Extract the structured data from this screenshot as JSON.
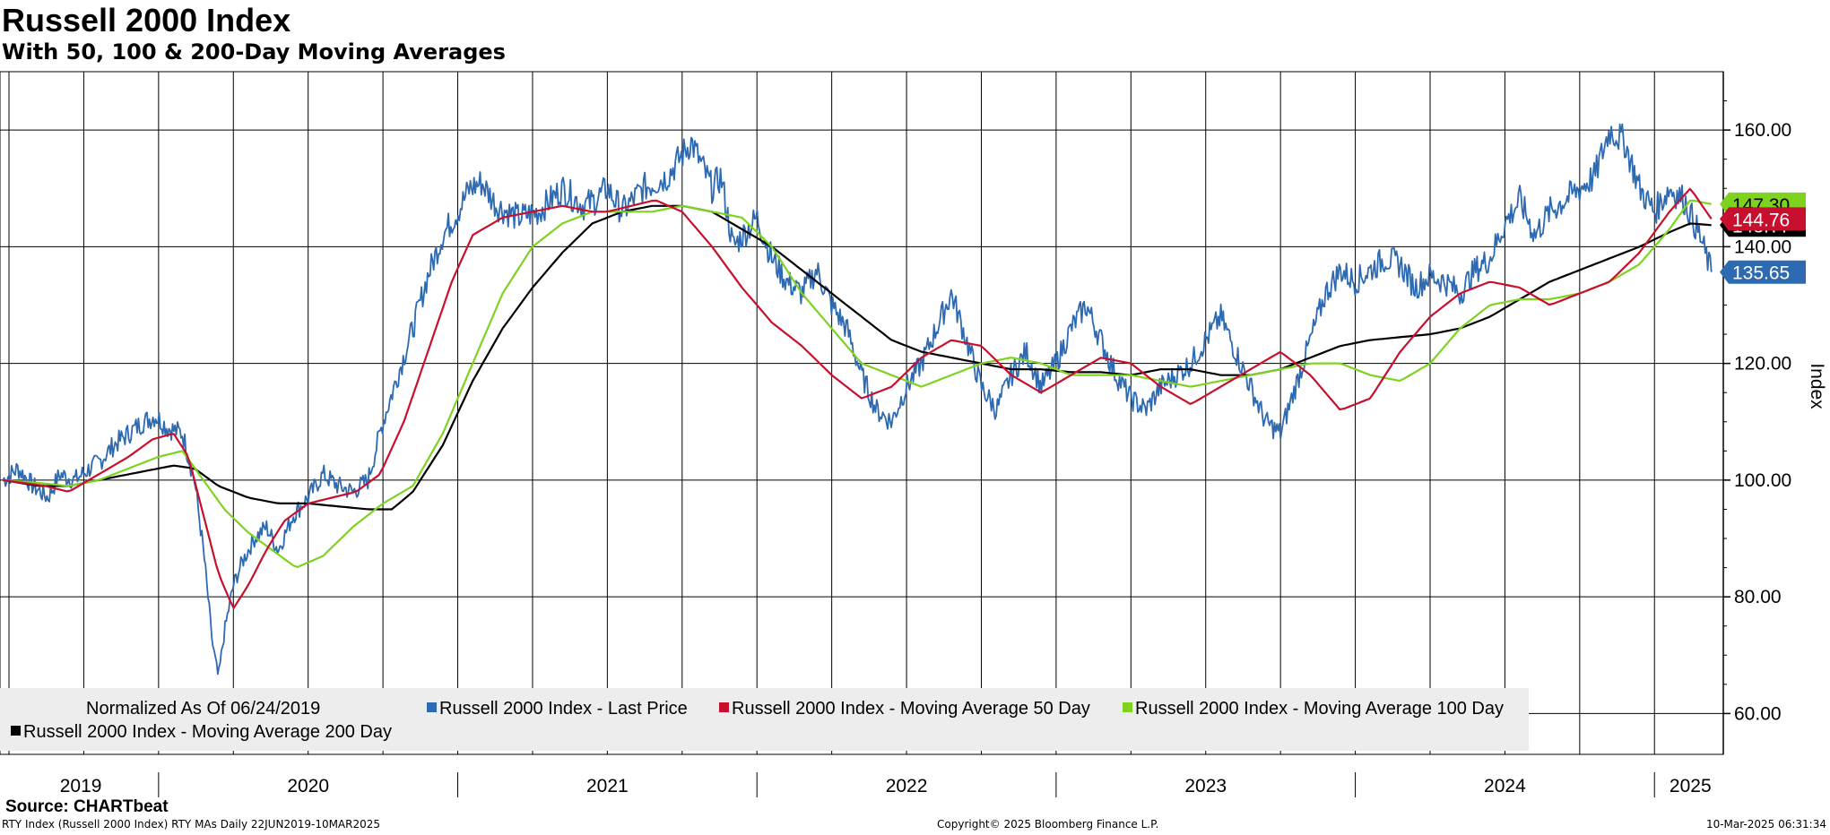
{
  "header": {
    "title": "Russell 2000 Index",
    "subtitle": "With 50, 100 & 200-Day Moving Averages"
  },
  "footer": {
    "source": "Source: CHARTbeat",
    "left": "RTY Index (Russell 2000 Index) RTY MAs  Daily 22JUN2019-10MAR2025",
    "center": "Copyright© 2025 Bloomberg Finance L.P.",
    "right": "10-Mar-2025 06:31:34"
  },
  "chart_data": {
    "type": "line",
    "title": "Russell 2000 Index",
    "subtitle": "With 50, 100 & 200-Day Moving Averages",
    "ylabel": "Index",
    "ylim": [
      53,
      170
    ],
    "yticks": [
      60,
      80,
      100,
      120,
      140,
      160
    ],
    "ytick_labels": [
      "60.00",
      "80.00",
      "100.00",
      "120.00",
      "140.00",
      "160.00"
    ],
    "xlim": [
      2019.47,
      2025.23
    ],
    "year_labels": [
      {
        "label": "2019",
        "center": 2019.74
      },
      {
        "label": "2020",
        "center": 2020.5
      },
      {
        "label": "2021",
        "center": 2021.5
      },
      {
        "label": "2022",
        "center": 2022.5
      },
      {
        "label": "2023",
        "center": 2023.5
      },
      {
        "label": "2024",
        "center": 2024.5
      },
      {
        "label": "2025",
        "center": 2025.12
      }
    ],
    "grid": true,
    "legend_position": "bottom",
    "legend_note": "Normalized As Of 06/24/2019",
    "last_values": {
      "ma100": "147.30",
      "ma50": "144.76",
      "price": "135.65",
      "ma200": "143.??"
    },
    "series": [
      {
        "name": "Russell 2000 Index - Last Price",
        "color": "#2e6ab1",
        "x": [
          2019.48,
          2019.53,
          2019.58,
          2019.63,
          2019.67,
          2019.72,
          2019.77,
          2019.8,
          2019.85,
          2019.9,
          2019.95,
          2019.99,
          2020.03,
          2020.08,
          2020.12,
          2020.15,
          2020.18,
          2020.2,
          2020.22,
          2020.25,
          2020.28,
          2020.32,
          2020.36,
          2020.4,
          2020.45,
          2020.5,
          2020.55,
          2020.6,
          2020.65,
          2020.7,
          2020.75,
          2020.8,
          2020.85,
          2020.9,
          2020.95,
          2021.0,
          2021.04,
          2021.08,
          2021.13,
          2021.2,
          2021.27,
          2021.35,
          2021.42,
          2021.46,
          2021.5,
          2021.55,
          2021.62,
          2021.7,
          2021.78,
          2021.85,
          2021.88,
          2021.92,
          2021.97,
          2022.0,
          2022.05,
          2022.1,
          2022.15,
          2022.2,
          2022.25,
          2022.3,
          2022.35,
          2022.4,
          2022.45,
          2022.5,
          2022.55,
          2022.6,
          2022.65,
          2022.7,
          2022.75,
          2022.8,
          2022.85,
          2022.9,
          2022.95,
          2023.0,
          2023.05,
          2023.1,
          2023.15,
          2023.2,
          2023.25,
          2023.3,
          2023.35,
          2023.4,
          2023.45,
          2023.5,
          2023.55,
          2023.6,
          2023.65,
          2023.7,
          2023.75,
          2023.8,
          2023.85,
          2023.9,
          2023.95,
          2024.0,
          2024.05,
          2024.1,
          2024.15,
          2024.2,
          2024.25,
          2024.3,
          2024.35,
          2024.4,
          2024.45,
          2024.5,
          2024.55,
          2024.6,
          2024.65,
          2024.7,
          2024.75,
          2024.8,
          2024.85,
          2024.9,
          2024.95,
          2025.0,
          2025.05,
          2025.1,
          2025.15,
          2025.19
        ],
        "values": [
          100,
          102,
          99,
          97,
          101,
          100,
          102,
          103,
          106,
          108,
          110,
          111,
          109,
          108,
          100,
          88,
          72,
          66,
          74,
          82,
          86,
          90,
          92,
          88,
          94,
          97,
          101,
          99,
          98,
          100,
          110,
          118,
          126,
          135,
          142,
          146,
          150,
          151,
          147,
          145,
          146,
          150,
          147,
          148,
          150,
          146,
          150,
          152,
          158,
          150,
          152,
          140,
          143,
          145,
          138,
          134,
          132,
          136,
          130,
          126,
          118,
          112,
          110,
          116,
          120,
          126,
          132,
          124,
          116,
          112,
          118,
          122,
          116,
          120,
          126,
          130,
          124,
          118,
          114,
          112,
          116,
          118,
          120,
          124,
          128,
          122,
          116,
          110,
          108,
          116,
          124,
          132,
          136,
          134,
          136,
          138,
          137,
          133,
          135,
          134,
          132,
          136,
          138,
          144,
          148,
          142,
          146,
          148,
          150,
          152,
          160,
          158,
          150,
          146,
          150,
          148,
          142,
          135.65
        ]
      },
      {
        "name": "Russell 2000 Index - Moving Average 50 Day",
        "color": "#c8102e",
        "x": [
          2019.48,
          2019.55,
          2019.62,
          2019.7,
          2019.8,
          2019.9,
          2019.98,
          2020.05,
          2020.1,
          2020.15,
          2020.2,
          2020.25,
          2020.3,
          2020.36,
          2020.42,
          2020.5,
          2020.58,
          2020.66,
          2020.74,
          2020.82,
          2020.9,
          2020.98,
          2021.05,
          2021.15,
          2021.25,
          2021.35,
          2021.45,
          2021.5,
          2021.58,
          2021.66,
          2021.75,
          2021.85,
          2021.95,
          2022.05,
          2022.15,
          2022.25,
          2022.35,
          2022.45,
          2022.55,
          2022.65,
          2022.75,
          2022.85,
          2022.95,
          2023.05,
          2023.15,
          2023.25,
          2023.35,
          2023.45,
          2023.55,
          2023.65,
          2023.75,
          2023.85,
          2023.95,
          2024.05,
          2024.15,
          2024.25,
          2024.35,
          2024.45,
          2024.55,
          2024.65,
          2024.75,
          2024.85,
          2024.95,
          2025.05,
          2025.12,
          2025.19
        ],
        "values": [
          100,
          99.5,
          99,
          98,
          101,
          104,
          107,
          108,
          104,
          94,
          84,
          78,
          82,
          88,
          93,
          96,
          97,
          98,
          101,
          110,
          122,
          134,
          142,
          145,
          146,
          147,
          146,
          146,
          147,
          148,
          146,
          140,
          133,
          127,
          123,
          118,
          114,
          116,
          121,
          124,
          123,
          118,
          115,
          118,
          121,
          120,
          116,
          113,
          116,
          119,
          122,
          118,
          112,
          114,
          122,
          128,
          132,
          134,
          133,
          130,
          132,
          134,
          139,
          146,
          150,
          144.76
        ]
      },
      {
        "name": "Russell 2000 Index - Moving Average 100 Day",
        "color": "#7ed321",
        "x": [
          2019.48,
          2019.6,
          2019.7,
          2019.8,
          2019.9,
          2020.0,
          2020.08,
          2020.15,
          2020.22,
          2020.3,
          2020.38,
          2020.46,
          2020.55,
          2020.65,
          2020.75,
          2020.85,
          2020.95,
          2021.05,
          2021.15,
          2021.25,
          2021.35,
          2021.45,
          2021.55,
          2021.65,
          2021.75,
          2021.85,
          2021.95,
          2022.05,
          2022.15,
          2022.25,
          2022.35,
          2022.45,
          2022.55,
          2022.65,
          2022.75,
          2022.85,
          2022.95,
          2023.05,
          2023.15,
          2023.25,
          2023.35,
          2023.45,
          2023.55,
          2023.65,
          2023.75,
          2023.85,
          2023.95,
          2024.05,
          2024.15,
          2024.25,
          2024.35,
          2024.45,
          2024.55,
          2024.65,
          2024.75,
          2024.85,
          2024.95,
          2025.05,
          2025.12,
          2025.19
        ],
        "values": [
          100,
          99.5,
          99,
          100,
          102,
          104,
          105,
          100,
          95,
          91,
          88,
          85,
          87,
          92,
          96,
          99,
          108,
          120,
          132,
          140,
          144,
          146,
          146,
          146,
          147,
          146,
          145,
          140,
          132,
          126,
          120,
          118,
          116,
          118,
          120,
          121,
          120,
          118,
          118,
          118,
          117,
          116,
          117,
          118,
          119,
          120,
          120,
          118,
          117,
          120,
          126,
          130,
          131,
          131,
          132,
          134,
          137,
          143,
          148,
          147.3
        ]
      },
      {
        "name": "Russell 2000 Index - Moving Average 200 Day",
        "color": "#000000",
        "x": [
          2019.48,
          2019.6,
          2019.7,
          2019.8,
          2019.9,
          2020.0,
          2020.05,
          2020.12,
          2020.2,
          2020.3,
          2020.4,
          2020.5,
          2020.6,
          2020.7,
          2020.78,
          2020.85,
          2020.95,
          2021.05,
          2021.15,
          2021.25,
          2021.35,
          2021.45,
          2021.55,
          2021.65,
          2021.75,
          2021.85,
          2021.95,
          2022.05,
          2022.15,
          2022.25,
          2022.35,
          2022.45,
          2022.55,
          2022.65,
          2022.75,
          2022.85,
          2022.95,
          2023.05,
          2023.15,
          2023.25,
          2023.35,
          2023.45,
          2023.55,
          2023.65,
          2023.75,
          2023.85,
          2023.95,
          2024.05,
          2024.15,
          2024.25,
          2024.35,
          2024.45,
          2024.55,
          2024.65,
          2024.75,
          2024.85,
          2024.95,
          2025.05,
          2025.12,
          2025.19
        ],
        "values": [
          100,
          99,
          99,
          100,
          101,
          102,
          102.5,
          102,
          99,
          97,
          96,
          96,
          95.5,
          95,
          95,
          98,
          106,
          117,
          126,
          133,
          139,
          144,
          146,
          147,
          147,
          146,
          143,
          140,
          136,
          132,
          128,
          124,
          122,
          121,
          120,
          119,
          119,
          118.5,
          118.5,
          118,
          119,
          119,
          118,
          118,
          119,
          121,
          123,
          124,
          124.5,
          125,
          126,
          128,
          131,
          134,
          136,
          138,
          140,
          142.5,
          144,
          143.7
        ]
      }
    ]
  }
}
